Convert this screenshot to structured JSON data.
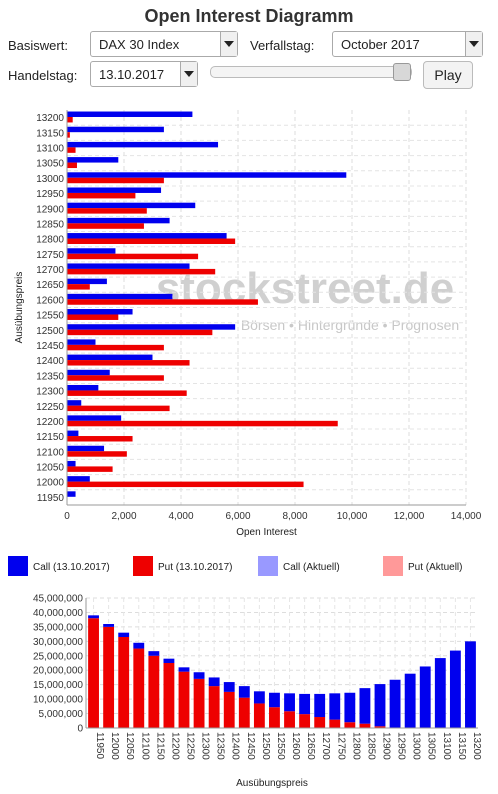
{
  "header": {
    "title": "Open Interest Diagramm"
  },
  "controls": {
    "basiswert_label": "Basiswert:",
    "basiswert_value": "DAX 30 Index",
    "verfallstag_label": "Verfallstag:",
    "verfallstag_value": "October 2017",
    "handelstag_label": "Handelstag:",
    "handelstag_value": "13.10.2017",
    "slider_position": 1.0,
    "play_label": "Play"
  },
  "watermark": {
    "brand": "stockstreet.de",
    "tagline": "Börsen • Hintergründe • Prognosen"
  },
  "legend": [
    {
      "label": "Call (13.10.2017)",
      "color": "#0000ee"
    },
    {
      "label": "Put (13.10.2017)",
      "color": "#ee0000"
    },
    {
      "label": "Call (Aktuell)",
      "color": "#9999ff"
    },
    {
      "label": "Put (Aktuell)",
      "color": "#ff9999"
    }
  ],
  "chart_data": [
    {
      "type": "bar",
      "orientation": "horizontal",
      "xlabel": "Open Interest",
      "ylabel": "Ausübungspreis",
      "xlim": [
        0,
        14000
      ],
      "xticks": [
        "0",
        "2,000",
        "4,000",
        "6,000",
        "8,000",
        "10,000",
        "12,000",
        "14,000"
      ],
      "grid": true,
      "categories": [
        "13200",
        "13150",
        "13100",
        "13050",
        "13000",
        "12950",
        "12900",
        "12850",
        "12800",
        "12750",
        "12700",
        "12650",
        "12600",
        "12550",
        "12500",
        "12450",
        "12400",
        "12350",
        "12300",
        "12250",
        "12200",
        "12150",
        "12100",
        "12050",
        "12000",
        "11950"
      ],
      "series": [
        {
          "name": "Call (13.10.2017)",
          "color": "#0000ee",
          "values": [
            4400,
            3400,
            5300,
            1800,
            9800,
            3300,
            4500,
            3600,
            5600,
            1700,
            4300,
            1400,
            3700,
            2300,
            5900,
            1000,
            3000,
            1500,
            1100,
            500,
            1900,
            400,
            1300,
            300,
            800,
            300
          ]
        },
        {
          "name": "Put (13.10.2017)",
          "color": "#ee0000",
          "values": [
            200,
            100,
            300,
            350,
            3400,
            2400,
            2800,
            2700,
            5900,
            4600,
            5200,
            800,
            6700,
            1800,
            5100,
            3400,
            4300,
            3400,
            4200,
            3600,
            9500,
            2300,
            2100,
            1600,
            8300,
            0
          ]
        }
      ]
    },
    {
      "type": "bar",
      "orientation": "vertical-stacked",
      "xlabel": "Ausübungspreis",
      "ylabel": "",
      "ylim": [
        0,
        45000000
      ],
      "yticks": [
        "0",
        "5,000,000",
        "10,000,000",
        "15,000,000",
        "20,000,000",
        "25,000,000",
        "30,000,000",
        "35,000,000",
        "40,000,000",
        "45,000,000"
      ],
      "grid": true,
      "categories": [
        "11950",
        "12000",
        "12050",
        "12100",
        "12150",
        "12200",
        "12250",
        "12300",
        "12350",
        "12400",
        "12450",
        "12500",
        "12550",
        "12600",
        "12650",
        "12700",
        "12750",
        "12800",
        "12850",
        "12900",
        "12950",
        "13000",
        "13050",
        "13100",
        "13150",
        "13200"
      ],
      "series": [
        {
          "name": "Put (13.10.2017)",
          "color": "#ee0000",
          "values": [
            38000000,
            35000000,
            31500000,
            27500000,
            25000000,
            22500000,
            19500000,
            17000000,
            14500000,
            12500000,
            10500000,
            8500000,
            7200000,
            5800000,
            4800000,
            3800000,
            2900000,
            2000000,
            1500000,
            600000,
            0,
            0,
            0,
            0,
            0,
            0
          ]
        },
        {
          "name": "Call (13.10.2017)",
          "color": "#0000ee",
          "values": [
            1000000,
            1000000,
            1500000,
            2000000,
            1600000,
            1500000,
            1500000,
            2300000,
            3000000,
            3400000,
            4000000,
            4200000,
            5000000,
            6200000,
            7000000,
            8000000,
            9100000,
            10200000,
            12300000,
            14600000,
            16700000,
            18800000,
            21300000,
            24200000,
            26800000,
            30000000
          ]
        }
      ]
    }
  ]
}
